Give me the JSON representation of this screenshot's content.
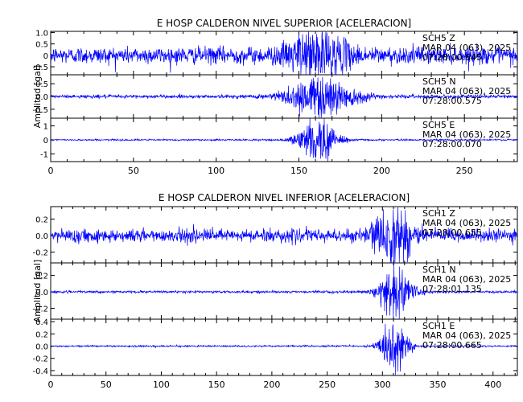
{
  "trace_color": "#0000ff",
  "chart_data": [
    {
      "type": "line",
      "title": "E HOSP CALDERON NIVEL SUPERIOR [ACELERACION]",
      "ylabel": "Amplitud [gal]",
      "xlabel": "",
      "xlim": [
        0,
        282
      ],
      "x_ticks": [
        0,
        50,
        100,
        150,
        200,
        250
      ],
      "panels": [
        {
          "series": "SCH5   Z",
          "date": "MAR 04 (063), 2025",
          "time": "07:28:00.645",
          "ylim": [
            -0.85,
            1.05
          ],
          "y_ticks": [
            1.0,
            0.5,
            0.0,
            -0.5
          ],
          "noise_amplitude": 0.33,
          "event_peak": 0.95,
          "event_center": 161,
          "event_halfwidth": 16
        },
        {
          "series": "SCH5   N",
          "date": "MAR 04 (063), 2025",
          "time": "07:28:00.575",
          "ylim": [
            -0.85,
            0.85
          ],
          "y_ticks": [
            0.5,
            0.0,
            -0.5
          ],
          "noise_amplitude": 0.06,
          "event_peak": 0.78,
          "event_center": 163,
          "event_halfwidth": 20
        },
        {
          "series": "SCH5   E",
          "date": "MAR 04 (063), 2025",
          "time": "07:28:00.070",
          "ylim": [
            -1.55,
            1.55
          ],
          "y_ticks": [
            1,
            0,
            -1
          ],
          "noise_amplitude": 0.05,
          "event_peak": 1.4,
          "event_center": 162,
          "event_halfwidth": 12
        }
      ]
    },
    {
      "type": "line",
      "title": "E HOSP CALDERON NIVEL INFERIOR [ACELERACION]",
      "ylabel": "Amplitud [gal]",
      "xlabel": "",
      "xlim": [
        0,
        422
      ],
      "x_ticks": [
        0,
        50,
        100,
        150,
        200,
        250,
        300,
        350,
        400
      ],
      "panels": [
        {
          "series": "SCH1   Z",
          "date": "MAR 04 (063), 2025",
          "time": "07:28:00.655",
          "ylim": [
            -0.33,
            0.35
          ],
          "y_ticks": [
            0.2,
            0.0,
            -0.2
          ],
          "noise_amplitude": 0.07,
          "event_peak": 0.3,
          "event_center": 312,
          "event_halfwidth": 18
        },
        {
          "series": "SCH1   N",
          "date": "MAR 04 (063), 2025",
          "time": "07:28:01.135",
          "ylim": [
            -0.33,
            0.35
          ],
          "y_ticks": [
            0.2,
            0.0,
            -0.2
          ],
          "noise_amplitude": 0.012,
          "event_peak": 0.32,
          "event_center": 313,
          "event_halfwidth": 14
        },
        {
          "series": "SCH1   E",
          "date": "MAR 04 (063), 2025",
          "time": "07:28:00.665",
          "ylim": [
            -0.48,
            0.44
          ],
          "y_ticks": [
            0.4,
            0.2,
            0.0,
            -0.2,
            -0.4
          ],
          "noise_amplitude": 0.012,
          "event_peak": 0.38,
          "event_center": 311,
          "event_halfwidth": 12
        }
      ]
    }
  ]
}
